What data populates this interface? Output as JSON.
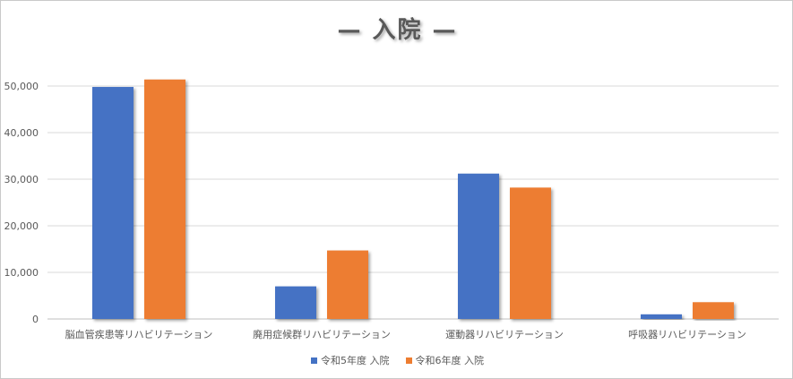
{
  "chart_data": {
    "type": "bar",
    "title": "— 入院 —",
    "categories": [
      "脳血管疾患等リハビリテーション",
      "廃用症候群リハビリテーション",
      "運動器リハビリテーション",
      "呼吸器リハビリテーション"
    ],
    "series": [
      {
        "name": "令和5年度 入院",
        "color": "#4472C4",
        "values": [
          49800,
          7000,
          31200,
          1000
        ]
      },
      {
        "name": "令和6年度 入院",
        "color": "#ED7D31",
        "values": [
          51400,
          14700,
          28200,
          3600
        ]
      }
    ],
    "ylim": [
      0,
      50000
    ],
    "yticks": [
      "0",
      "10,000",
      "20,000",
      "30,000",
      "40,000",
      "50,000"
    ],
    "ytick_values": [
      0,
      10000,
      20000,
      30000,
      40000,
      50000
    ],
    "grid": true,
    "legend_position": "bottom"
  }
}
